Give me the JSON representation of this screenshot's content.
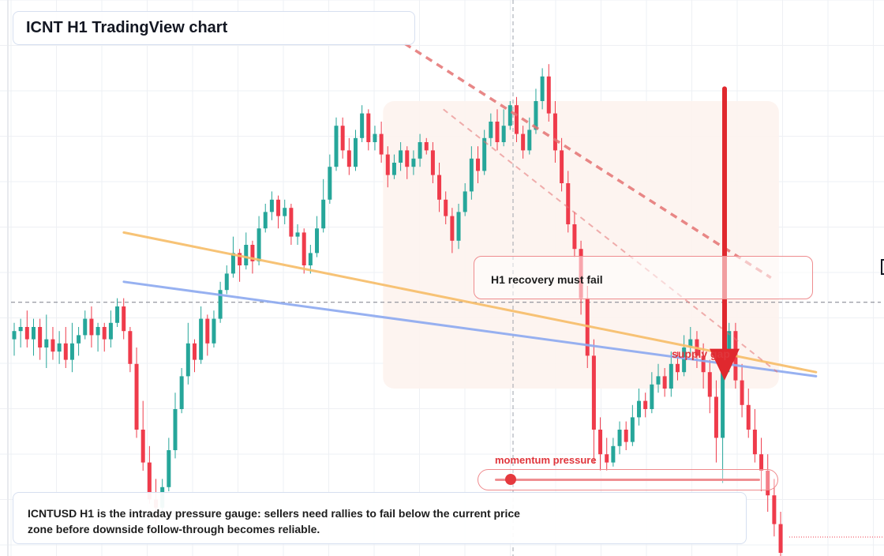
{
  "header": {
    "title": "ICNT H1 TradingView chart"
  },
  "annotations": {
    "recovery_label": "H1 recovery must fail",
    "supply_label": "supply gap",
    "momentum_label": "momentum pressure",
    "momentum_level": 0.06
  },
  "summary": {
    "text": "ICNTUSD H1 is the intraday pressure gauge: sellers need rallies to fail below the current price zone before downside follow-through becomes reliable."
  },
  "colors": {
    "bull": "#26a69a",
    "bear": "#ef3b4b",
    "trend_orange": "#f7be6b",
    "trend_blue": "#8fabf0",
    "channel_red": "#e57373",
    "accent_red": "#e0282e",
    "zone_fill": "#fdf3ee"
  },
  "chart_data": {
    "type": "candlestick",
    "symbol": "ICNTUSD",
    "timeframe": "H1",
    "price_index": "relative (0 = top of view, 100 = bottom of view)",
    "candles": [
      [
        52,
        54,
        48,
        56
      ],
      [
        54,
        55,
        50,
        57
      ],
      [
        55,
        52,
        50,
        59
      ],
      [
        52,
        55,
        48,
        57
      ],
      [
        55,
        50,
        47,
        57
      ],
      [
        50,
        52,
        45,
        58
      ],
      [
        52,
        49,
        47,
        55
      ],
      [
        49,
        51,
        46,
        54
      ],
      [
        51,
        47,
        45,
        55
      ],
      [
        47,
        51,
        44,
        56
      ],
      [
        51,
        53,
        48,
        55
      ],
      [
        53,
        57,
        52,
        59
      ],
      [
        57,
        53,
        50,
        60
      ],
      [
        53,
        55,
        49,
        56
      ],
      [
        55,
        52,
        49,
        56
      ],
      [
        52,
        56,
        50,
        59
      ],
      [
        56,
        60,
        55,
        62
      ],
      [
        60,
        54,
        52,
        62
      ],
      [
        54,
        46,
        44,
        55
      ],
      [
        46,
        30,
        28,
        50
      ],
      [
        30,
        22,
        20,
        37
      ],
      [
        22,
        13,
        12,
        26
      ],
      [
        13,
        11,
        7,
        18
      ],
      [
        11,
        16,
        9,
        18
      ],
      [
        16,
        25,
        15,
        28
      ],
      [
        25,
        35,
        23,
        39
      ],
      [
        35,
        43,
        34,
        45
      ],
      [
        43,
        51,
        41,
        56
      ],
      [
        51,
        47,
        44,
        52
      ],
      [
        47,
        57,
        46,
        60
      ],
      [
        57,
        51,
        48,
        58
      ],
      [
        51,
        57,
        50,
        59
      ],
      [
        57,
        64,
        56,
        66
      ],
      [
        64,
        68,
        63,
        70
      ],
      [
        68,
        73,
        67,
        77
      ],
      [
        73,
        70,
        66,
        74
      ],
      [
        70,
        75,
        69,
        78
      ],
      [
        75,
        71,
        68,
        76
      ],
      [
        71,
        79,
        70,
        82
      ],
      [
        79,
        83,
        78,
        85
      ],
      [
        83,
        86,
        81,
        88
      ],
      [
        86,
        82,
        79,
        87
      ],
      [
        82,
        84,
        80,
        86
      ],
      [
        84,
        77,
        75,
        85
      ],
      [
        77,
        78,
        75,
        80
      ],
      [
        78,
        70,
        68,
        79
      ],
      [
        70,
        73,
        68,
        75
      ],
      [
        73,
        79,
        72,
        82
      ],
      [
        79,
        86,
        78,
        91
      ],
      [
        86,
        94,
        85,
        97
      ],
      [
        94,
        104,
        93,
        106
      ],
      [
        104,
        98,
        96,
        106
      ],
      [
        98,
        94,
        92,
        101
      ],
      [
        94,
        101,
        93,
        103
      ],
      [
        101,
        107,
        100,
        109
      ],
      [
        107,
        100,
        98,
        108
      ],
      [
        100,
        102,
        98,
        104
      ],
      [
        102,
        97,
        95,
        105
      ],
      [
        97,
        92,
        89,
        99
      ],
      [
        92,
        95,
        91,
        97
      ],
      [
        95,
        98,
        93,
        100
      ],
      [
        98,
        94,
        91,
        99
      ],
      [
        94,
        96,
        92,
        98
      ],
      [
        96,
        100,
        94,
        102
      ],
      [
        100,
        98,
        97,
        101
      ],
      [
        98,
        92,
        90,
        100
      ],
      [
        92,
        86,
        83,
        95
      ],
      [
        86,
        82,
        80,
        88
      ],
      [
        82,
        76,
        73,
        84
      ],
      [
        76,
        83,
        74,
        85
      ],
      [
        83,
        88,
        82,
        90
      ],
      [
        88,
        96,
        86,
        99
      ],
      [
        96,
        93,
        90,
        99
      ],
      [
        93,
        101,
        92,
        103
      ],
      [
        101,
        105,
        99,
        107
      ],
      [
        105,
        100,
        98,
        108
      ],
      [
        100,
        104,
        99,
        108
      ],
      [
        104,
        109,
        103,
        110
      ],
      [
        109,
        102,
        100,
        111
      ],
      [
        102,
        98,
        96,
        104
      ],
      [
        98,
        103,
        97,
        106
      ],
      [
        103,
        110,
        102,
        113
      ],
      [
        110,
        116,
        108,
        118
      ],
      [
        116,
        107,
        105,
        119
      ],
      [
        107,
        98,
        95,
        110
      ],
      [
        98,
        90,
        88,
        101
      ],
      [
        90,
        80,
        78,
        93
      ],
      [
        80,
        74,
        72,
        83
      ],
      [
        74,
        62,
        58,
        76
      ],
      [
        62,
        48,
        45,
        65
      ],
      [
        48,
        30,
        22,
        52
      ],
      [
        30,
        24,
        20,
        33
      ],
      [
        24,
        22,
        20,
        28
      ],
      [
        22,
        26,
        21,
        28
      ],
      [
        26,
        30,
        24,
        32
      ],
      [
        30,
        27,
        25,
        32
      ],
      [
        27,
        33,
        26,
        36
      ],
      [
        33,
        37,
        31,
        40
      ],
      [
        37,
        35,
        33,
        39
      ],
      [
        35,
        41,
        34,
        44
      ],
      [
        41,
        43,
        39,
        46
      ],
      [
        43,
        40,
        38,
        45
      ],
      [
        40,
        46,
        38,
        49
      ],
      [
        46,
        44,
        42,
        49
      ],
      [
        44,
        50,
        43,
        53
      ],
      [
        50,
        52,
        48,
        55
      ],
      [
        52,
        48,
        45,
        54
      ],
      [
        48,
        44,
        40,
        51
      ],
      [
        44,
        38,
        34,
        47
      ],
      [
        38,
        28,
        22,
        42
      ],
      [
        28,
        46,
        17,
        52
      ],
      [
        46,
        54,
        44,
        56
      ],
      [
        54,
        42,
        40,
        56
      ],
      [
        42,
        36,
        33,
        46
      ],
      [
        36,
        30,
        28,
        40
      ],
      [
        30,
        24,
        22,
        35
      ],
      [
        24,
        20,
        15,
        28
      ],
      [
        20,
        14,
        10,
        24
      ],
      [
        14,
        7,
        4,
        18
      ],
      [
        7,
        0,
        -4,
        10
      ]
    ],
    "trendlines": [
      {
        "name": "upper trend",
        "color": "orange",
        "points": [
          [
            18,
            78
          ],
          [
            124,
            44
          ]
        ]
      },
      {
        "name": "lower trend",
        "color": "blue",
        "points": [
          [
            18,
            66
          ],
          [
            124,
            43
          ]
        ]
      }
    ],
    "channel_lines": [
      {
        "style": "dashed",
        "points": [
          [
            67,
            108
          ],
          [
            118,
            44
          ]
        ]
      },
      {
        "style": "dashed",
        "points": [
          [
            61,
            124
          ],
          [
            117,
            67
          ]
        ]
      }
    ],
    "current_price_index": 61,
    "arrow": {
      "direction": "down",
      "from_price": 113,
      "to_price": 42
    },
    "zone": {
      "type": "supply zone",
      "from_candle": 58,
      "to_candle": 118,
      "price_top": 110,
      "price_bottom": 40
    }
  }
}
